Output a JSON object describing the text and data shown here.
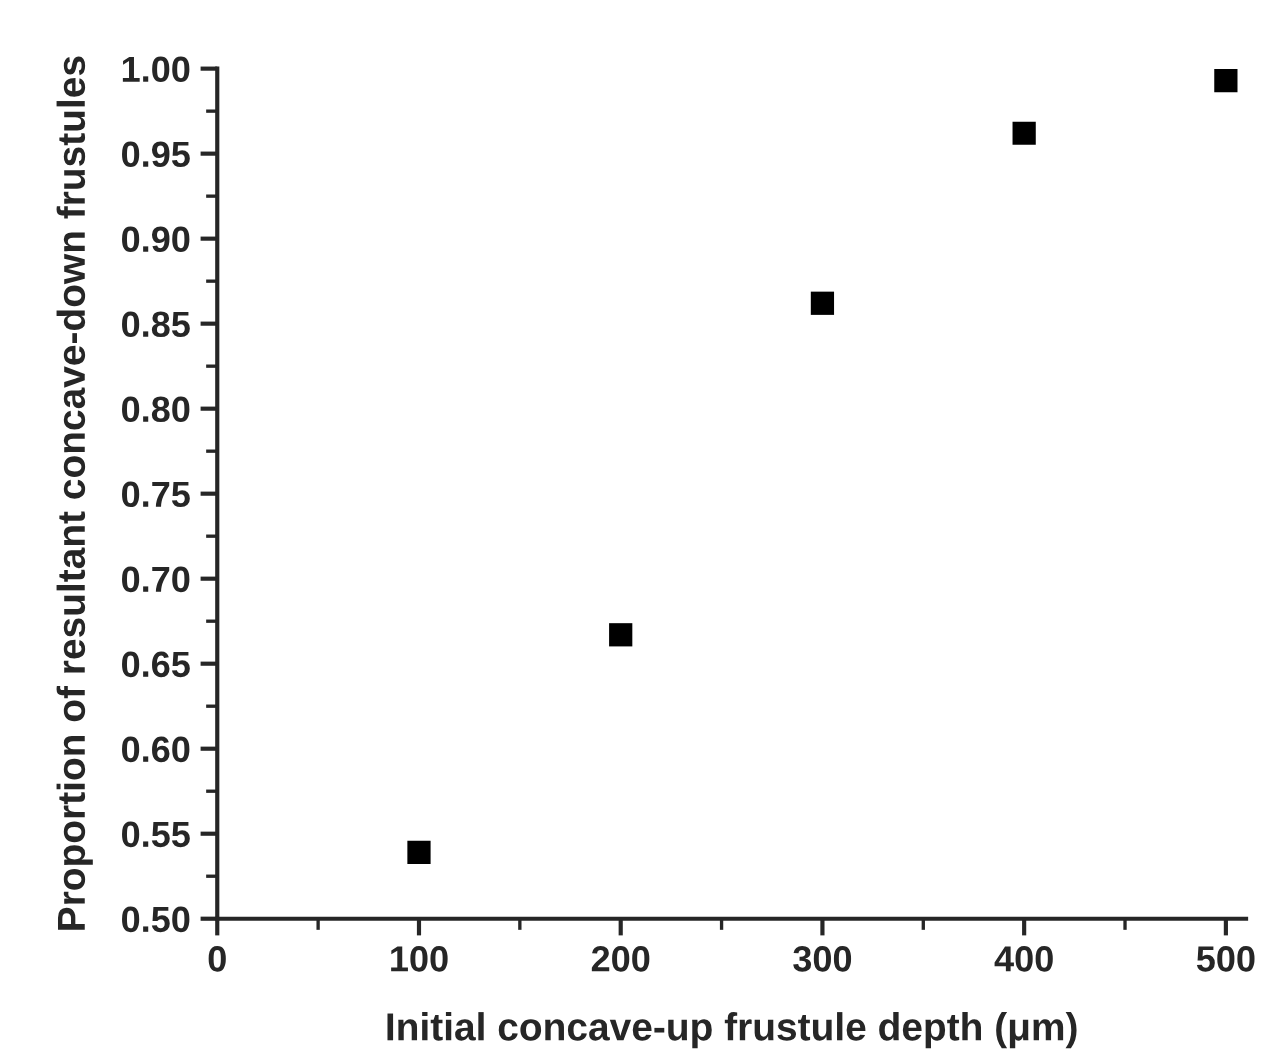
{
  "chart_data": {
    "type": "scatter",
    "xlabel": "Initial concave-up frustule depth (μm)",
    "ylabel": "Proportion of resultant concave-down frustules",
    "x": [
      100,
      200,
      300,
      400,
      500
    ],
    "series": [
      {
        "color": "#000000",
        "values": [
          0.539,
          0.667,
          0.862,
          0.962,
          0.993
        ]
      }
    ],
    "marker": "square",
    "xlim": [
      0,
      510
    ],
    "xticks": [
      0,
      100,
      200,
      300,
      400,
      500
    ],
    "ylim": [
      0.5,
      1.0
    ],
    "yticks": [
      {
        "value": 0.5,
        "label": "0.50"
      },
      {
        "value": 0.55,
        "label": "0.55"
      },
      {
        "value": 0.6,
        "label": "0.60"
      },
      {
        "value": 0.65,
        "label": "0.65"
      },
      {
        "value": 0.7,
        "label": "0.70"
      },
      {
        "value": 0.75,
        "label": "0.75"
      },
      {
        "value": 0.8,
        "label": "0.80"
      },
      {
        "value": 0.85,
        "label": "0.85"
      },
      {
        "value": 0.9,
        "label": "0.90"
      },
      {
        "value": 0.95,
        "label": "0.95"
      },
      {
        "value": 1.0,
        "label": "1.00"
      }
    ],
    "grid": false
  }
}
